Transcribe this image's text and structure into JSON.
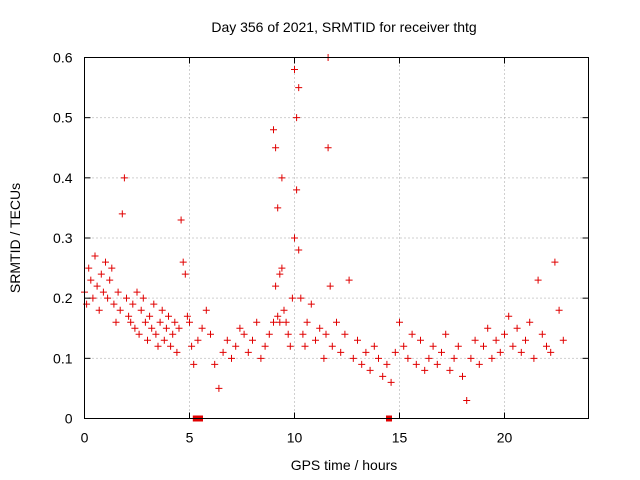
{
  "chart_data": {
    "type": "scatter",
    "title": "Day 356 of 2021, SRMTID for receiver thtg",
    "xlabel": "GPS time / hours",
    "ylabel": "SRMTID / TECUs",
    "xlim": [
      0,
      24
    ],
    "ylim": [
      0,
      0.6
    ],
    "xticks": [
      "0",
      "5",
      "10",
      "15",
      "20"
    ],
    "xtick_values": [
      0,
      5,
      10,
      15,
      20
    ],
    "yticks": [
      "0",
      "0.1",
      "0.2",
      "0.3",
      "0.4",
      "0.5",
      "0.6"
    ],
    "ytick_values": [
      0,
      0.1,
      0.2,
      0.3,
      0.4,
      0.5,
      0.6
    ],
    "grid": true,
    "marker": "+",
    "series_color": "#e00000",
    "series": [
      {
        "name": "SRMTID",
        "x": [
          0.0,
          0.1,
          0.2,
          0.3,
          0.4,
          0.5,
          0.6,
          0.7,
          0.8,
          0.9,
          1.0,
          1.1,
          1.2,
          1.3,
          1.4,
          1.5,
          1.6,
          1.7,
          1.8,
          1.9,
          2.0,
          2.1,
          2.2,
          2.3,
          2.4,
          2.5,
          2.6,
          2.7,
          2.8,
          2.9,
          3.0,
          3.1,
          3.2,
          3.3,
          3.4,
          3.5,
          3.6,
          3.7,
          3.8,
          3.9,
          4.0,
          4.1,
          4.2,
          4.3,
          4.4,
          4.5,
          4.6,
          4.7,
          4.8,
          4.9,
          5.0,
          5.1,
          5.2,
          5.4,
          5.6,
          5.8,
          6.0,
          6.2,
          6.4,
          6.6,
          6.8,
          7.0,
          7.2,
          7.4,
          7.6,
          7.8,
          8.0,
          8.2,
          8.4,
          8.6,
          8.8,
          9.0,
          9.0,
          9.1,
          9.1,
          9.2,
          9.2,
          9.3,
          9.3,
          9.4,
          9.4,
          9.5,
          9.6,
          9.7,
          9.8,
          9.9,
          10.0,
          10.0,
          10.1,
          10.1,
          10.2,
          10.2,
          10.3,
          10.4,
          10.5,
          10.6,
          10.8,
          11.0,
          11.2,
          11.4,
          11.5,
          11.6,
          11.6,
          11.7,
          11.8,
          12.0,
          12.2,
          12.4,
          12.6,
          12.8,
          13.0,
          13.2,
          13.4,
          13.6,
          13.8,
          14.0,
          14.2,
          14.4,
          14.6,
          14.8,
          15.0,
          15.2,
          15.4,
          15.6,
          15.8,
          16.0,
          16.2,
          16.4,
          16.6,
          16.8,
          17.0,
          17.2,
          17.4,
          17.6,
          17.8,
          18.0,
          18.2,
          18.4,
          18.6,
          18.8,
          19.0,
          19.2,
          19.4,
          19.6,
          19.8,
          20.0,
          20.2,
          20.4,
          20.6,
          20.8,
          21.0,
          21.2,
          21.4,
          21.6,
          21.8,
          22.0,
          22.2,
          22.4,
          22.6,
          22.8
        ],
        "y": [
          0.21,
          0.19,
          0.25,
          0.23,
          0.2,
          0.27,
          0.22,
          0.18,
          0.24,
          0.21,
          0.26,
          0.2,
          0.23,
          0.25,
          0.19,
          0.16,
          0.21,
          0.18,
          0.34,
          0.4,
          0.2,
          0.17,
          0.16,
          0.19,
          0.15,
          0.21,
          0.14,
          0.18,
          0.2,
          0.16,
          0.13,
          0.17,
          0.15,
          0.19,
          0.14,
          0.12,
          0.16,
          0.18,
          0.13,
          0.15,
          0.17,
          0.12,
          0.14,
          0.16,
          0.11,
          0.15,
          0.33,
          0.26,
          0.24,
          0.17,
          0.16,
          0.12,
          0.09,
          0.13,
          0.15,
          0.18,
          0.14,
          0.09,
          0.05,
          0.11,
          0.13,
          0.1,
          0.12,
          0.15,
          0.14,
          0.11,
          0.13,
          0.16,
          0.1,
          0.12,
          0.14,
          0.16,
          0.48,
          0.22,
          0.45,
          0.17,
          0.35,
          0.24,
          0.16,
          0.25,
          0.4,
          0.18,
          0.16,
          0.14,
          0.12,
          0.2,
          0.58,
          0.3,
          0.5,
          0.38,
          0.55,
          0.28,
          0.2,
          0.14,
          0.12,
          0.16,
          0.19,
          0.13,
          0.15,
          0.1,
          0.14,
          0.6,
          0.45,
          0.22,
          0.12,
          0.16,
          0.11,
          0.14,
          0.23,
          0.1,
          0.13,
          0.09,
          0.11,
          0.08,
          0.12,
          0.1,
          0.07,
          0.09,
          0.06,
          0.11,
          0.16,
          0.12,
          0.1,
          0.14,
          0.09,
          0.13,
          0.08,
          0.1,
          0.12,
          0.09,
          0.11,
          0.14,
          0.08,
          0.1,
          0.12,
          0.07,
          0.03,
          0.1,
          0.13,
          0.09,
          0.12,
          0.15,
          0.1,
          0.13,
          0.11,
          0.14,
          0.17,
          0.12,
          0.15,
          0.11,
          0.13,
          0.16,
          0.1,
          0.23,
          0.14,
          0.12,
          0.11,
          0.26,
          0.18,
          0.13
        ],
        "zero_points": [
          5.3,
          5.5,
          14.5
        ]
      }
    ]
  }
}
